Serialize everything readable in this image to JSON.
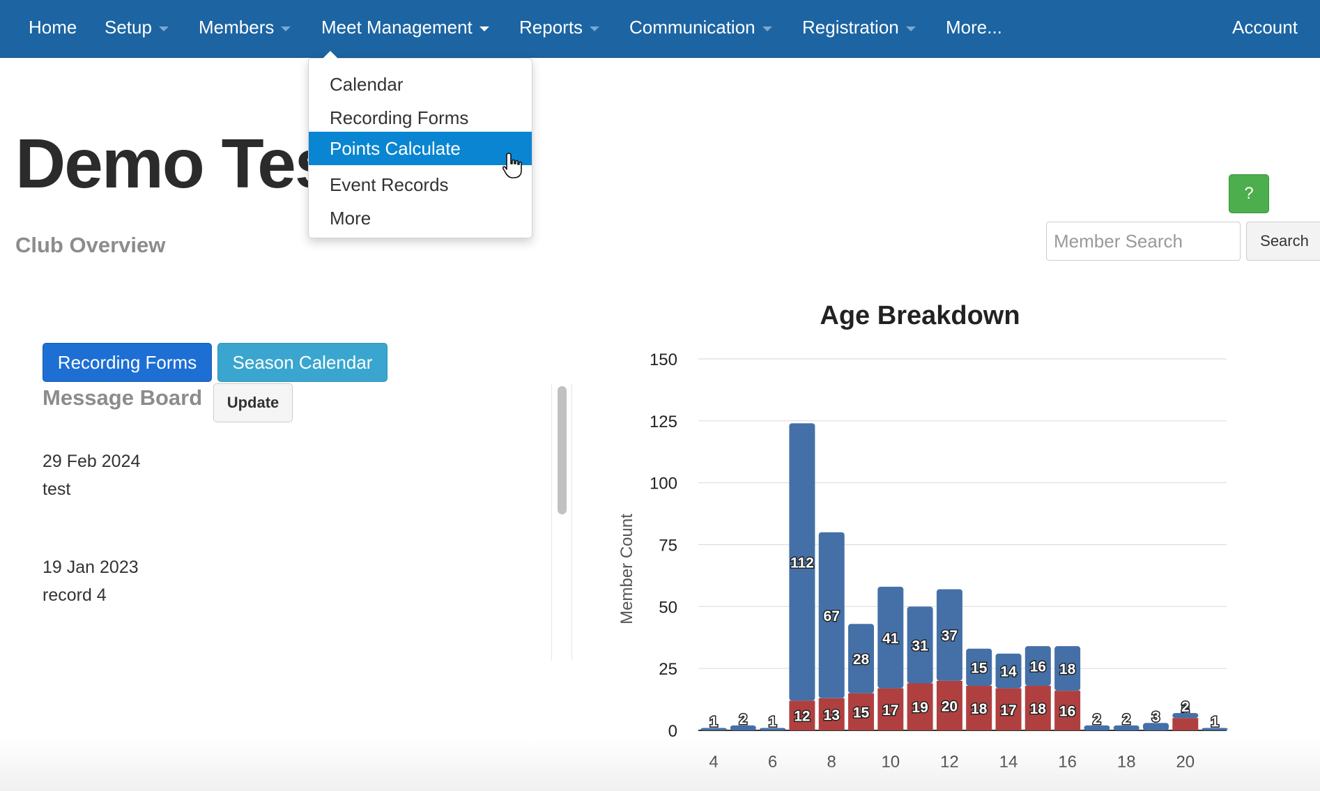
{
  "nav": {
    "items": [
      {
        "label": "Home",
        "caret": false
      },
      {
        "label": "Setup",
        "caret": true
      },
      {
        "label": "Members",
        "caret": true
      },
      {
        "label": "Meet Management",
        "caret": true,
        "open": true
      },
      {
        "label": "Reports",
        "caret": true
      },
      {
        "label": "Communication",
        "caret": true
      },
      {
        "label": "Registration",
        "caret": true
      },
      {
        "label": "More...",
        "caret": false
      }
    ],
    "account": "Account"
  },
  "dropdown": {
    "items": [
      "Calendar",
      "Recording Forms",
      "Points Calculate",
      "Event Records",
      "More"
    ],
    "active": "Points Calculate"
  },
  "page": {
    "title": "Demo Tes",
    "subtitle": "Club Overview",
    "help_label": "?",
    "search_placeholder": "Member Search",
    "search_button": "Search"
  },
  "left": {
    "recording_forms": "Recording Forms",
    "season_calendar": "Season Calendar",
    "message_board": "Message Board",
    "update": "Update",
    "messages": [
      {
        "date": "29 Feb 2024",
        "text": "test"
      },
      {
        "date": "19 Jan 2023",
        "text": "record 4"
      }
    ]
  },
  "colors": {
    "navbar": "#1c64a2",
    "series_blue": "#4470a7",
    "series_red": "#b0403f",
    "active_item": "#0a85d1"
  },
  "chart_data": {
    "type": "bar",
    "stacked": true,
    "title": "Age Breakdown",
    "xlabel": "",
    "ylabel": "Member Count",
    "ylim": [
      0,
      150
    ],
    "yticks": [
      0,
      25,
      50,
      75,
      100,
      125,
      150
    ],
    "xticks": [
      4,
      6,
      8,
      10,
      12,
      14,
      16,
      18,
      20
    ],
    "categories": [
      4,
      5,
      6,
      7,
      8,
      9,
      10,
      11,
      12,
      13,
      14,
      15,
      16,
      17,
      18,
      19,
      20,
      21
    ],
    "series": [
      {
        "color": "#b0403f",
        "values": [
          0,
          0,
          0,
          12,
          13,
          15,
          17,
          19,
          20,
          18,
          17,
          18,
          16,
          0,
          0,
          0,
          5,
          0
        ]
      },
      {
        "color": "#4470a7",
        "values": [
          1,
          2,
          1,
          112,
          67,
          28,
          41,
          31,
          37,
          15,
          14,
          16,
          18,
          2,
          2,
          3,
          2,
          1
        ]
      }
    ],
    "grid": true,
    "legend": "none"
  }
}
